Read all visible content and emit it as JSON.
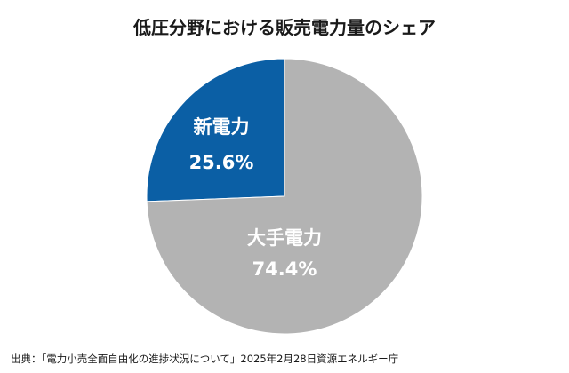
{
  "chart_data": {
    "type": "pie",
    "title": "低圧分野における販売電力量のシェア",
    "categories": [
      "新電力",
      "大手電力"
    ],
    "values": [
      25.6,
      74.4
    ],
    "data_labels": [
      "25.6%",
      "74.4%"
    ],
    "colors": [
      "#0b5fa5",
      "#b3b3b3"
    ],
    "start": "top",
    "direction": "counterclockwise",
    "legend": "none"
  },
  "source": "出典：「電力小売全面自由化の進捗状況について」2025年2月28日資源エネルギー庁"
}
